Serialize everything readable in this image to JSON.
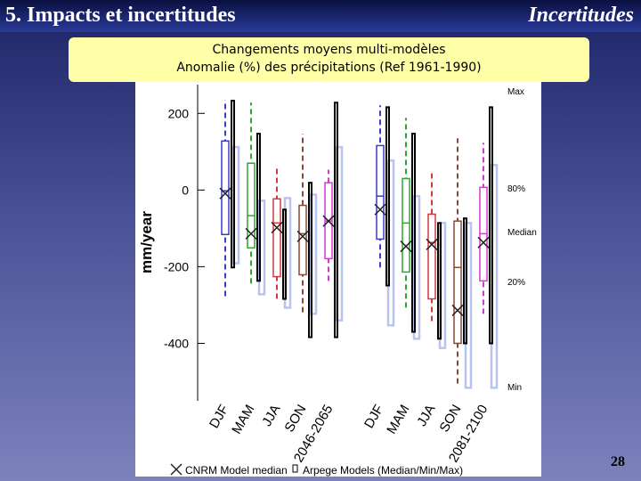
{
  "header": {
    "title": "5. Impacts et incertitudes",
    "section": "Incertitudes"
  },
  "caption": {
    "line1": "Changements moyens multi-modèles",
    "line2": "Anomalie (%) des précipitations (Ref 1961-1990)"
  },
  "page_number": "28",
  "chart_data": {
    "type": "boxplot",
    "ylabel": "mm/year",
    "categories": [
      "DJF",
      "MAM",
      "JJA",
      "SON",
      null,
      "DJF",
      "MAM",
      "JJA",
      "SON",
      null
    ],
    "groups": [
      "2046-2065",
      "2081-2100"
    ],
    "ylim": [
      -550,
      275
    ],
    "yticks": [
      200,
      0,
      -200,
      -400
    ],
    "stat_labels": [
      "Max",
      "80%",
      "Median",
      "20%",
      "Min"
    ],
    "legend": [
      "CNRM Model median",
      "Arpege Models (Median/Min/Max)"
    ],
    "colors": [
      "#3a3acc",
      "#2fa32f",
      "#d23a3a",
      "#8a4a3a",
      "#d23ad2",
      "#3a3acc",
      "#2fa32f",
      "#d23a3a",
      "#8a4a3a",
      "#d23ad2"
    ],
    "boxes": {
      "max": [
        235,
        228,
        65,
        147,
        53,
        221,
        188,
        53,
        135,
        123
      ],
      "q80": [
        128,
        70,
        -23,
        -40,
        19,
        116,
        30,
        -63,
        -81,
        7
      ],
      "median": [
        -2,
        -67,
        -86,
        -114,
        -81,
        -16,
        -86,
        -137,
        -202,
        -114
      ],
      "q20": [
        -116,
        -151,
        -226,
        -221,
        -179,
        -128,
        -214,
        -284,
        -400,
        -237
      ],
      "min": [
        -277,
        -244,
        -284,
        -319,
        -237,
        -202,
        -307,
        -342,
        -505,
        -323
      ]
    },
    "cnrm": [
      -9,
      -114,
      -98,
      -121,
      -81,
      -51,
      -147,
      -142,
      -314,
      -137
    ],
    "arpege_max": [
      233,
      147,
      -51,
      19,
      228,
      216,
      147,
      -86,
      -74,
      216
    ],
    "arpege_min": [
      -202,
      -237,
      -284,
      -384,
      -384,
      -249,
      -370,
      -388,
      -400,
      -400
    ],
    "ensemble_max": [
      112,
      -28,
      -21,
      -12,
      112,
      77,
      -16,
      -86,
      -86,
      65
    ],
    "ensemble_min": [
      -191,
      -272,
      -307,
      -323,
      -340,
      -353,
      -388,
      -412,
      -516,
      -516
    ]
  }
}
